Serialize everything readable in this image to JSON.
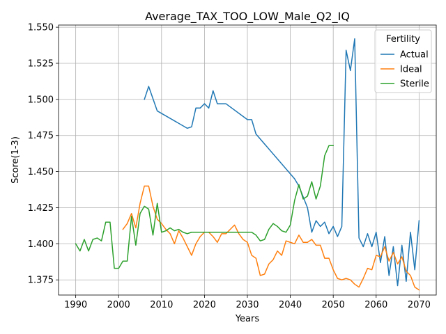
{
  "chart_data": {
    "type": "line",
    "title": "Average_TAX_TOO_LOW_Male_Q2_IQ",
    "xlabel": "Years",
    "ylabel": "Score(1-3)",
    "xlim": [
      1986,
      2074
    ],
    "ylim": [
      1.3645,
      1.5515
    ],
    "xticks": [
      1990,
      2000,
      2010,
      2020,
      2030,
      2040,
      2050,
      2060,
      2070
    ],
    "yticks": [
      1.375,
      1.4,
      1.425,
      1.45,
      1.475,
      1.5,
      1.525,
      1.55
    ],
    "grid": true,
    "legend": {
      "title": "Fertility",
      "position": "top-right"
    },
    "series": [
      {
        "name": "Actual",
        "color": "#1f77b4",
        "x": [
          2006,
          2007,
          2009,
          2016,
          2017,
          2018,
          2019,
          2020,
          2021,
          2022,
          2023,
          2025,
          2030,
          2031,
          2032,
          2041,
          2042,
          2044,
          2045,
          2046,
          2047,
          2048,
          2049,
          2050,
          2051,
          2052,
          2053,
          2054,
          2055,
          2056,
          2057,
          2058,
          2059,
          2060,
          2061,
          2062,
          2063,
          2064,
          2065,
          2066,
          2067,
          2068,
          2069,
          2070
        ],
        "values": [
          1.5,
          1.509,
          1.492,
          1.48,
          1.481,
          1.494,
          1.494,
          1.497,
          1.494,
          1.506,
          1.497,
          1.497,
          1.486,
          1.486,
          1.476,
          1.445,
          1.44,
          1.425,
          1.408,
          1.416,
          1.412,
          1.415,
          1.407,
          1.412,
          1.405,
          1.412,
          1.534,
          1.52,
          1.542,
          1.404,
          1.398,
          1.407,
          1.398,
          1.408,
          1.387,
          1.405,
          1.378,
          1.398,
          1.371,
          1.399,
          1.374,
          1.408,
          1.382,
          1.416
        ]
      },
      {
        "name": "Ideal",
        "color": "#ff7f0e",
        "x": [
          2001,
          2002,
          2003,
          2004,
          2005,
          2006,
          2007,
          2008,
          2009,
          2010,
          2011,
          2012,
          2013,
          2014,
          2015,
          2016,
          2017,
          2018,
          2019,
          2020,
          2021,
          2022,
          2023,
          2024,
          2025,
          2026,
          2027,
          2028,
          2029,
          2030,
          2031,
          2032,
          2033,
          2034,
          2035,
          2036,
          2037,
          2038,
          2039,
          2040,
          2041,
          2042,
          2043,
          2044,
          2045,
          2046,
          2047,
          2048,
          2049,
          2050,
          2051,
          2052,
          2053,
          2054,
          2055,
          2056,
          2057,
          2058,
          2059,
          2060,
          2061,
          2062,
          2063,
          2064,
          2065,
          2066,
          2067,
          2068,
          2069,
          2070
        ],
        "values": [
          1.41,
          1.414,
          1.421,
          1.411,
          1.428,
          1.44,
          1.44,
          1.426,
          1.417,
          1.414,
          1.41,
          1.407,
          1.4,
          1.409,
          1.404,
          1.398,
          1.392,
          1.4,
          1.405,
          1.408,
          1.408,
          1.405,
          1.401,
          1.407,
          1.407,
          1.41,
          1.413,
          1.407,
          1.403,
          1.401,
          1.392,
          1.39,
          1.378,
          1.379,
          1.386,
          1.389,
          1.395,
          1.392,
          1.402,
          1.401,
          1.4,
          1.406,
          1.401,
          1.401,
          1.403,
          1.399,
          1.399,
          1.39,
          1.39,
          1.382,
          1.376,
          1.375,
          1.376,
          1.375,
          1.372,
          1.37,
          1.376,
          1.383,
          1.382,
          1.392,
          1.391,
          1.398,
          1.388,
          1.394,
          1.386,
          1.391,
          1.381,
          1.378,
          1.37,
          1.368
        ]
      },
      {
        "name": "Sterile",
        "color": "#2ca02c",
        "x": [
          1990,
          1991,
          1992,
          1993,
          1994,
          1995,
          1996,
          1997,
          1998,
          1999,
          2000,
          2001,
          2002,
          2003,
          2004,
          2005,
          2006,
          2007,
          2008,
          2009,
          2010,
          2011,
          2012,
          2013,
          2014,
          2015,
          2016,
          2017,
          2018,
          2020,
          2025,
          2030,
          2031,
          2032,
          2033,
          2034,
          2035,
          2036,
          2037,
          2038,
          2039,
          2040,
          2041,
          2042,
          2043,
          2044,
          2045,
          2046,
          2047,
          2048,
          2049,
          2050
        ],
        "values": [
          1.4,
          1.395,
          1.403,
          1.395,
          1.403,
          1.404,
          1.402,
          1.415,
          1.415,
          1.383,
          1.383,
          1.388,
          1.388,
          1.419,
          1.399,
          1.421,
          1.426,
          1.424,
          1.406,
          1.428,
          1.408,
          1.409,
          1.411,
          1.409,
          1.41,
          1.408,
          1.407,
          1.408,
          1.408,
          1.408,
          1.408,
          1.408,
          1.408,
          1.406,
          1.402,
          1.403,
          1.41,
          1.414,
          1.412,
          1.409,
          1.408,
          1.413,
          1.43,
          1.441,
          1.431,
          1.433,
          1.443,
          1.431,
          1.44,
          1.461,
          1.468,
          1.468
        ]
      }
    ]
  }
}
